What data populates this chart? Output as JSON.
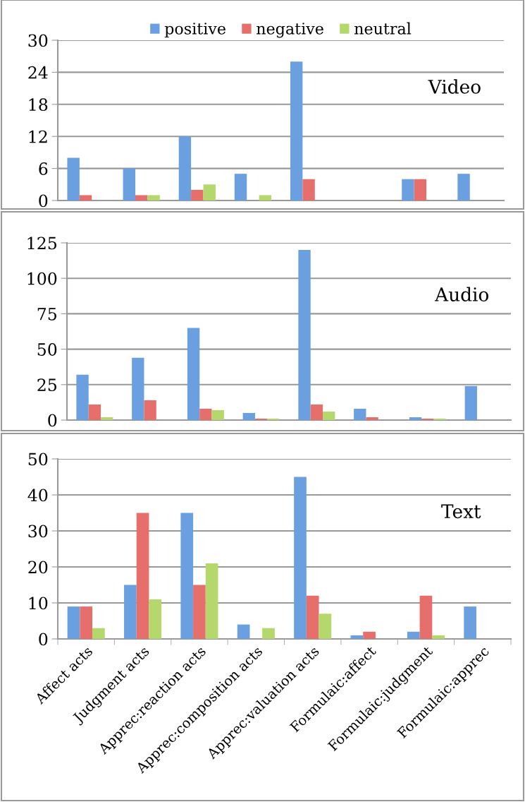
{
  "chart_data": [
    {
      "type": "bar",
      "title": "Video",
      "categories": [
        null,
        null,
        null,
        null,
        null,
        null,
        null,
        null
      ],
      "tick_labels": "y",
      "ylim": [
        0,
        30
      ],
      "yticks": [
        0,
        6,
        12,
        18,
        24,
        30
      ],
      "grid": "y",
      "legend": "top",
      "series": [
        {
          "name": "positive",
          "color": "#6a9fe0",
          "values": [
            8,
            6,
            12,
            5,
            26,
            0,
            4,
            5
          ]
        },
        {
          "name": "negative",
          "color": "#e66f6b",
          "values": [
            1,
            1,
            2,
            0,
            4,
            0,
            4,
            0
          ]
        },
        {
          "name": "neutral",
          "color": "#b5d86d",
          "values": [
            0,
            1,
            3,
            1,
            0,
            0,
            0,
            0
          ]
        }
      ]
    },
    {
      "type": "bar",
      "title": "Audio",
      "categories": [
        null,
        null,
        null,
        null,
        null,
        null,
        null,
        null
      ],
      "tick_labels": "y",
      "ylim": [
        0,
        125
      ],
      "yticks": [
        0,
        25,
        50,
        75,
        100,
        125
      ],
      "grid": "y",
      "series": [
        {
          "color": "#6a9fe0",
          "values": [
            32,
            44,
            65,
            5,
            120,
            8,
            2,
            24
          ]
        },
        {
          "color": "#e66f6b",
          "values": [
            11,
            14,
            8,
            1,
            11,
            2,
            1,
            0
          ]
        },
        {
          "color": "#b5d86d",
          "values": [
            2,
            0,
            7,
            1,
            6,
            0,
            1,
            0
          ]
        }
      ]
    },
    {
      "type": "bar",
      "title": "Text",
      "categories": [
        "Affect acts",
        "Judgment acts",
        "Apprec:reaction acts",
        "Apprec:composition acts",
        "Apprec:valuation acts",
        "Formulaic:affect",
        "Formulaic:judgment",
        "Formulaic:apprec"
      ],
      "ylim": [
        0,
        50
      ],
      "yticks": [
        0,
        10,
        20,
        30,
        40,
        50
      ],
      "grid": "y",
      "series": [
        {
          "color": "#6a9fe0",
          "values": [
            9,
            15,
            35,
            4,
            45,
            1,
            2,
            9
          ]
        },
        {
          "color": "#e66f6b",
          "values": [
            9,
            35,
            15,
            0,
            12,
            2,
            12,
            0
          ]
        },
        {
          "color": "#b5d86d",
          "values": [
            3,
            11,
            21,
            3,
            7,
            0,
            1,
            0
          ]
        }
      ]
    }
  ]
}
